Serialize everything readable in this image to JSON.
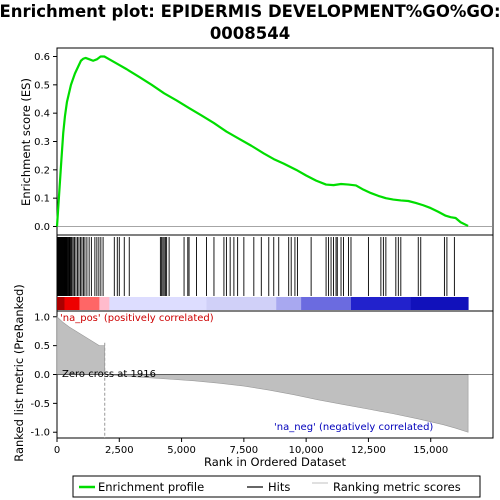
{
  "chart_data": {
    "type": "line",
    "title_lines": [
      "Enrichment plot: EPIDERMIS DEVELOPMENT%GO%GO:",
      "0008544"
    ],
    "xlabel": "Rank in Ordered Dataset",
    "ylabel_es": "Enrichment score (ES)",
    "ylabel_metric": "Ranked list metric (PreRanked)",
    "xlim": [
      0,
      17500
    ],
    "x_ticks": [
      0,
      2500,
      5000,
      7500,
      10000,
      12500,
      15000
    ],
    "x_tick_labels": [
      "0",
      "2,500",
      "5,000",
      "7,500",
      "10,000",
      "12,500",
      "15,000"
    ],
    "es_ylim": [
      -0.03,
      0.63
    ],
    "es_ticks": [
      0.0,
      0.1,
      0.2,
      0.3,
      0.4,
      0.5,
      0.6
    ],
    "es_tick_labels": [
      "0.0",
      "0.1",
      "0.2",
      "0.3",
      "0.4",
      "0.5",
      "0.6"
    ],
    "metric_ylim": [
      -1.1,
      1.1
    ],
    "metric_ticks": [
      1.0,
      0.5,
      0.0,
      -0.5,
      -1.0
    ],
    "metric_tick_labels": [
      "1.0",
      "0.5",
      "0.0",
      "-0.5",
      "-1.0"
    ],
    "n_genes": 16500,
    "zero_cross": 1916,
    "annotations": {
      "pos_label": "'na_pos' (positively correlated)",
      "neg_label": "'na_neg' (negatively correlated)",
      "zero_cross_label": "Zero cross at 1916"
    },
    "legend": [
      "Enrichment profile",
      "Hits",
      "Ranking metric scores"
    ],
    "colors": {
      "es_line": "#00dd00",
      "pos": "#ff0000",
      "neg": "#0000cc",
      "metric": "#bfbfbf"
    },
    "series": [
      {
        "name": "Enrichment profile",
        "x": [
          0,
          60,
          120,
          180,
          250,
          320,
          400,
          480,
          560,
          640,
          720,
          800,
          880,
          960,
          1050,
          1150,
          1300,
          1450,
          1600,
          1750,
          1900,
          2100,
          2400,
          2800,
          3300,
          3800,
          4300,
          4800,
          5300,
          5800,
          6300,
          6800,
          7300,
          7800,
          8300,
          8700,
          9100,
          9600,
          10000,
          10400,
          10800,
          11100,
          11400,
          11700,
          12000,
          12300,
          12600,
          12900,
          13200,
          13500,
          13800,
          14100,
          14400,
          14700,
          15000,
          15300,
          15600,
          15800,
          16000,
          16200,
          16500
        ],
        "y": [
          0.0,
          0.08,
          0.16,
          0.24,
          0.33,
          0.39,
          0.44,
          0.47,
          0.5,
          0.52,
          0.54,
          0.555,
          0.57,
          0.585,
          0.592,
          0.595,
          0.59,
          0.585,
          0.59,
          0.6,
          0.6,
          0.59,
          0.575,
          0.555,
          0.528,
          0.5,
          0.47,
          0.445,
          0.418,
          0.392,
          0.365,
          0.335,
          0.31,
          0.285,
          0.258,
          0.238,
          0.222,
          0.2,
          0.18,
          0.162,
          0.148,
          0.146,
          0.15,
          0.148,
          0.145,
          0.13,
          0.118,
          0.108,
          0.1,
          0.095,
          0.092,
          0.09,
          0.083,
          0.075,
          0.065,
          0.052,
          0.038,
          0.033,
          0.03,
          0.015,
          0.002
        ]
      },
      {
        "name": "Hits",
        "hit_ranks": [
          20,
          40,
          60,
          80,
          100,
          120,
          140,
          160,
          180,
          200,
          220,
          240,
          260,
          280,
          300,
          320,
          340,
          360,
          380,
          400,
          430,
          460,
          490,
          520,
          560,
          600,
          650,
          700,
          760,
          820,
          880,
          940,
          1000,
          1060,
          1120,
          1200,
          1290,
          1380,
          1520,
          1600,
          1680,
          1760,
          1850,
          2300,
          2420,
          2500,
          2700,
          2900,
          4150,
          4200,
          4250,
          4300,
          4350,
          4400,
          4500,
          5100,
          5250,
          5300,
          5600,
          6000,
          6300,
          6700,
          6800,
          6950,
          7100,
          7250,
          7500,
          7900,
          8200,
          8500,
          8700,
          8900,
          9300,
          9400,
          9550,
          9650,
          10200,
          10800,
          10900,
          11000,
          11100,
          11200,
          11250,
          11400,
          11500,
          11700,
          11800,
          12500,
          13000,
          13100,
          13200,
          13600,
          13700,
          13800,
          14500,
          14600,
          15550,
          15650,
          15950
        ]
      },
      {
        "name": "Ranking metric scores",
        "x": [
          0,
          100,
          250,
          500,
          800,
          1100,
          1400,
          1700,
          1916,
          2500,
          3500,
          4500,
          5500,
          6500,
          7500,
          8500,
          9500,
          10500,
          11500,
          12500,
          13500,
          14500,
          15500,
          16000,
          16500
        ],
        "y": [
          1.0,
          0.96,
          0.9,
          0.82,
          0.74,
          0.66,
          0.58,
          0.5,
          0.0,
          -0.02,
          -0.05,
          -0.08,
          -0.11,
          -0.15,
          -0.2,
          -0.27,
          -0.35,
          -0.44,
          -0.52,
          -0.6,
          -0.68,
          -0.77,
          -0.87,
          -0.93,
          -1.0
        ]
      }
    ],
    "color_bar": {
      "stops": [
        {
          "rank": 0,
          "color": "#aa0000"
        },
        {
          "rank": 300,
          "color": "#ee0000"
        },
        {
          "rank": 900,
          "color": "#ff6666"
        },
        {
          "rank": 1700,
          "color": "#ffbbcc"
        },
        {
          "rank": 2100,
          "color": "#ddddff"
        },
        {
          "rank": 6000,
          "color": "#d0d0f8"
        },
        {
          "rank": 8800,
          "color": "#a8a8f0"
        },
        {
          "rank": 9800,
          "color": "#6b6be0"
        },
        {
          "rank": 11800,
          "color": "#2222cc"
        },
        {
          "rank": 14200,
          "color": "#1111bb"
        },
        {
          "rank": 16500,
          "color": "#000099"
        }
      ]
    }
  }
}
